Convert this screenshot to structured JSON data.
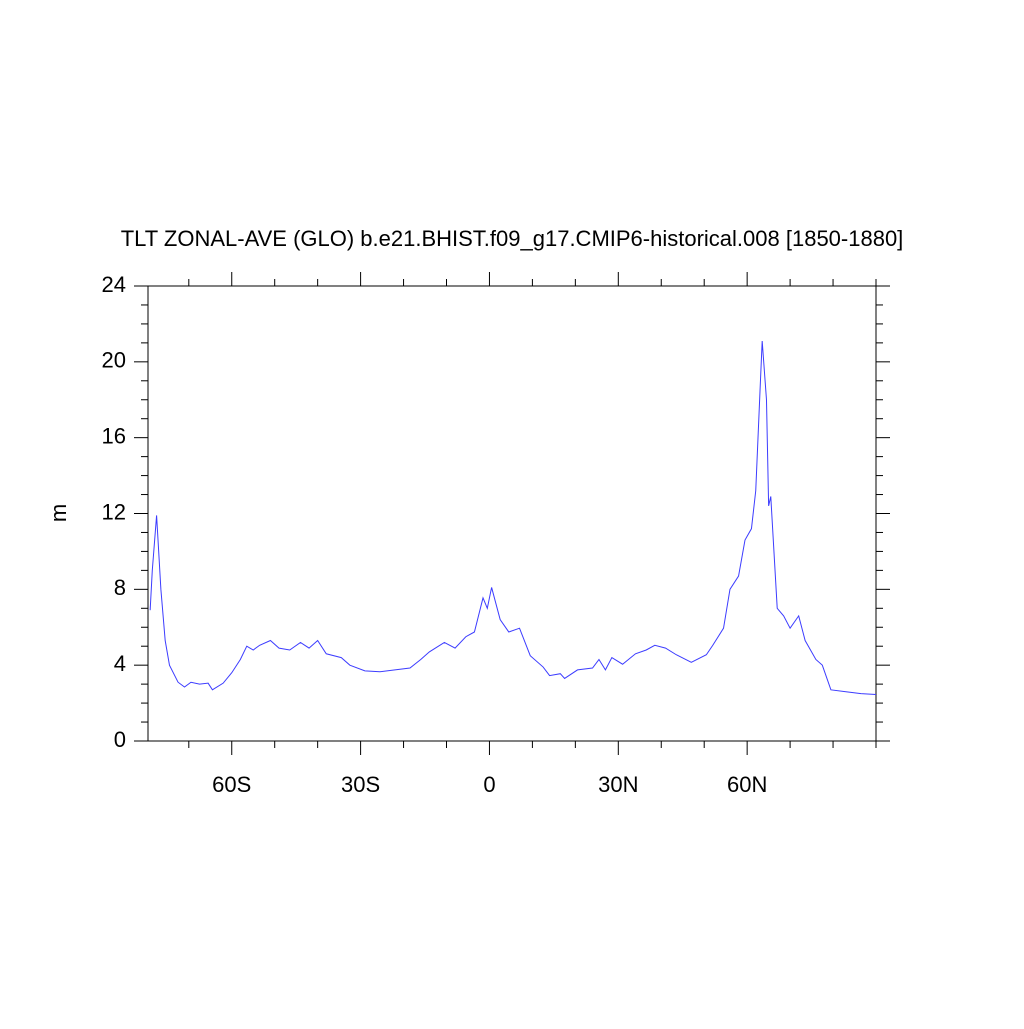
{
  "chart_data": {
    "type": "line",
    "title": "TLT ZONAL-AVE (GLO) b.e21.BHIST.f09_g17.CMIP6-historical.008 [1850-1880]",
    "y_label": "m",
    "x": [
      -79,
      -78.5,
      -77.5,
      -76.5,
      -75.5,
      -74.5,
      -72.5,
      -71,
      -69.5,
      -67.5,
      -65.5,
      -64.5,
      -62,
      -60,
      -58,
      -56.5,
      -55,
      -53.5,
      -51,
      -49,
      -46.5,
      -44,
      -42,
      -40,
      -38,
      -34.5,
      -32.5,
      -29,
      -25.5,
      -22,
      -18.5,
      -16,
      -14,
      -10.5,
      -8,
      -5.5,
      -3.5,
      -1.5,
      -0.5,
      0.5,
      2.5,
      4.5,
      7,
      9.5,
      12.5,
      14,
      16.5,
      17.5,
      20.5,
      24,
      25.5,
      27,
      28.5,
      31,
      34,
      36.5,
      38.5,
      41,
      43.5,
      47,
      50.5,
      52,
      54.5,
      56,
      58,
      59.5,
      61,
      62,
      63,
      63.5,
      64.5,
      65,
      65.5,
      67,
      68.5,
      70,
      72,
      73.5,
      76,
      77.5,
      79.5,
      83,
      86.5,
      90
    ],
    "series": [
      {
        "name": "TLT",
        "color": "#3c3cff",
        "values": [
          6.9,
          9.0,
          11.9,
          8.0,
          5.3,
          4.0,
          3.1,
          2.85,
          3.1,
          3.0,
          3.05,
          2.7,
          3.05,
          3.6,
          4.3,
          5.0,
          4.8,
          5.05,
          5.3,
          4.9,
          4.8,
          5.2,
          4.9,
          5.3,
          4.6,
          4.4,
          4.0,
          3.7,
          3.65,
          3.75,
          3.85,
          4.3,
          4.7,
          5.2,
          4.9,
          5.5,
          5.75,
          7.55,
          7.0,
          8.1,
          6.4,
          5.75,
          5.95,
          4.5,
          3.9,
          3.45,
          3.55,
          3.3,
          3.75,
          3.85,
          4.3,
          3.75,
          4.4,
          4.05,
          4.6,
          4.8,
          5.05,
          4.9,
          4.55,
          4.15,
          4.55,
          5.05,
          5.95,
          8.0,
          8.7,
          10.6,
          11.2,
          13.2,
          18.5,
          21.1,
          18.0,
          12.4,
          12.9,
          7.0,
          6.6,
          5.95,
          6.6,
          5.3,
          4.3,
          4.0,
          2.7,
          2.6,
          2.5,
          2.45
        ]
      }
    ],
    "xlim": [
      -79.5,
      90
    ],
    "ylim": [
      0,
      24
    ],
    "xticks": [
      {
        "value": -60,
        "label": "60S"
      },
      {
        "value": -30,
        "label": "30S"
      },
      0,
      {
        "value": 30,
        "label": "30N"
      },
      {
        "value": 60,
        "label": "60N"
      }
    ],
    "yticks": [
      0,
      4,
      8,
      12,
      16,
      20,
      24
    ],
    "xminorticks": [
      -70,
      -50,
      -40,
      -20,
      -10,
      10,
      20,
      40,
      50,
      70,
      80,
      90
    ],
    "yminorticks": [
      1,
      2,
      3,
      5,
      6,
      7,
      9,
      10,
      11,
      13,
      14,
      15,
      17,
      18,
      19,
      21,
      22,
      23
    ]
  }
}
